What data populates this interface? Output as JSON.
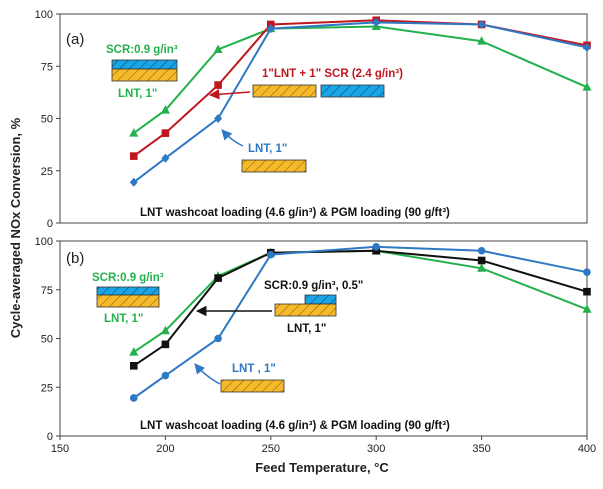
{
  "chart_data": [
    {
      "type": "line",
      "panel_label": "(a)",
      "x": [
        185,
        200,
        225,
        250,
        300,
        350,
        400
      ],
      "xlim": [
        150,
        400
      ],
      "ylim": [
        0,
        100
      ],
      "y_ticks": [
        0,
        25,
        50,
        75,
        100
      ],
      "series": [
        {
          "name": "LNT, 1\" + SCR:0.9 g/in3",
          "color": "#22b14c",
          "marker": "triangle",
          "values": [
            43,
            54,
            83,
            93,
            94,
            87,
            65
          ]
        },
        {
          "name": "1\"LNT + 1\" SCR (2.4 g/in3)",
          "color": "#c0161e",
          "marker": "square",
          "values": [
            32,
            43,
            66,
            95,
            97,
            95,
            85
          ]
        },
        {
          "name": "LNT, 1\"",
          "color": "#2f78c4",
          "marker": "diamond",
          "values": [
            19.5,
            31,
            50,
            93,
            96,
            95,
            84
          ]
        }
      ],
      "annotations": {
        "scr_label": "SCR:0.9 g/in³",
        "lnt_label_green": "LNT, 1\"",
        "combo_label": "1\"LNT + 1\" SCR (2.4 g/in³)",
        "lnt_label_blue": "LNT, 1\"",
        "footer": "LNT washcoat loading (4.6 g/in³) & PGM loading (90 g/ft³)"
      }
    },
    {
      "type": "line",
      "panel_label": "(b)",
      "x": [
        185,
        200,
        225,
        250,
        300,
        350,
        400
      ],
      "xlim": [
        150,
        400
      ],
      "ylim": [
        0,
        100
      ],
      "y_ticks": [
        0,
        25,
        50,
        75,
        100
      ],
      "x_ticks": [
        150,
        200,
        250,
        300,
        350,
        400
      ],
      "series": [
        {
          "name": "LNT, 1\" + SCR:0.9 g/in3",
          "color": "#22b14c",
          "marker": "triangle",
          "values": [
            43,
            54,
            82,
            94,
            95,
            86,
            65
          ]
        },
        {
          "name": "LNT, 1\" + SCR:0.9 g/in3, 0.5\"",
          "color": "#111111",
          "marker": "square",
          "values": [
            36,
            47,
            81,
            94,
            95,
            90,
            74
          ]
        },
        {
          "name": "LNT, 1\"",
          "color": "#2f78c4",
          "marker": "circle",
          "values": [
            19.5,
            31,
            50,
            93,
            97,
            95,
            84
          ]
        }
      ],
      "annotations": {
        "scr_label": "SCR:0.9 g/in³",
        "lnt_label_green": "LNT, 1\"",
        "scr_half_label": "SCR:0.9 g/in³, 0.5\"",
        "lnt_label_black": "LNT, 1\"",
        "lnt_label_blue": "LNT , 1\"",
        "footer": "LNT washcoat loading (4.6 g/in³) & PGM loading (90 g/ft³)"
      }
    }
  ],
  "xlabel": "Feed Temperature, °C",
  "ylabel": "Cycle-averaged NOx Conversion, %"
}
